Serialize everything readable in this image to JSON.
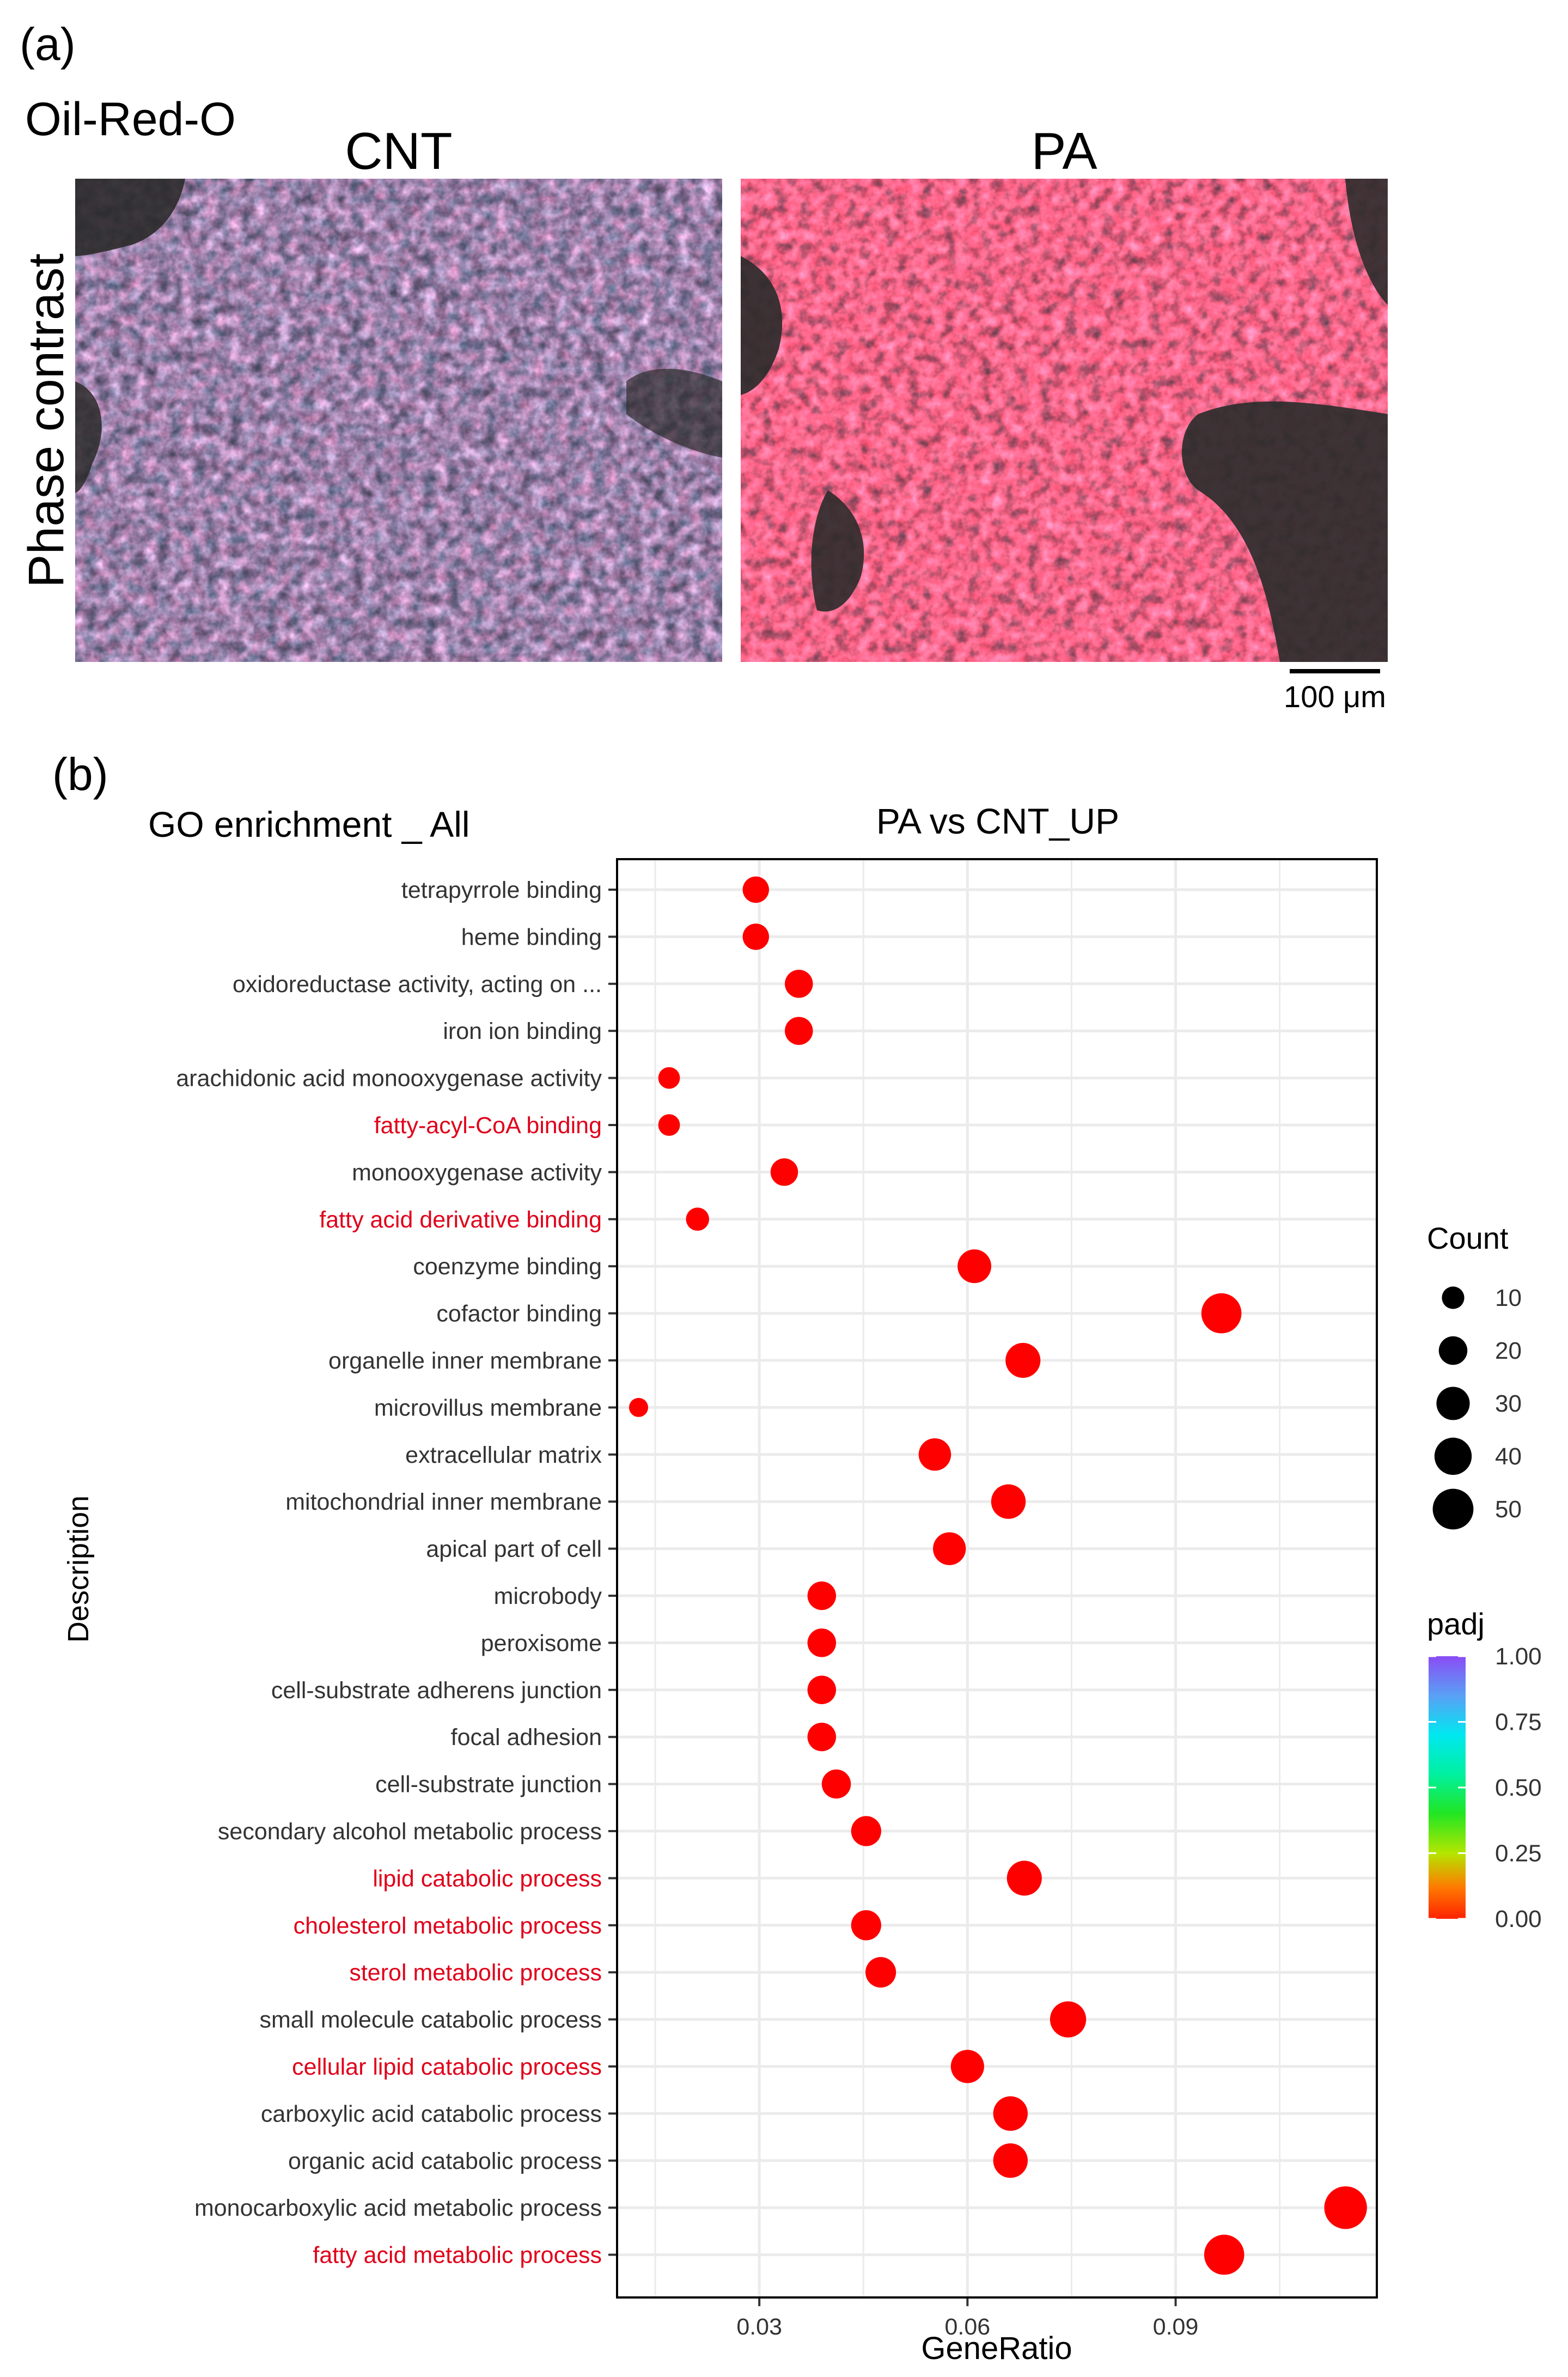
{
  "panel_a": {
    "label": "(a)",
    "stain": "Oil-Red-O",
    "row_label": "Phase contrast",
    "images": [
      {
        "title": "CNT"
      },
      {
        "title": "PA"
      }
    ],
    "scale_bar": "100 μm"
  },
  "panel_b": {
    "label": "(b)",
    "left_title": "GO enrichment _ All",
    "plot_title": "PA vs CNT_UP"
  },
  "colors": {
    "point": "#ff0000",
    "highlight_label": "#e0001a",
    "normal_label": "#333333",
    "panel_bg": "#ebebeb"
  },
  "chart_data": {
    "type": "scatter",
    "title": "PA vs CNT_UP",
    "xlabel": "GeneRatio",
    "ylabel": "Description",
    "x_ticks": [
      "0.03",
      "0.06",
      "0.09"
    ],
    "xlim": [
      0.0095,
      0.119
    ],
    "grid": true,
    "legend_placement": "right",
    "size_legend": {
      "title": "Count",
      "values": [
        10,
        20,
        30,
        40,
        50
      ]
    },
    "color_legend": {
      "title": "padj",
      "ticks": [
        "1.00",
        "0.75",
        "0.50",
        "0.25",
        "0.00"
      ],
      "range": [
        0,
        1
      ]
    },
    "points": [
      {
        "label": "tetrapyrrole binding",
        "x": 0.0295,
        "count": 16,
        "padj": 0.0,
        "highlight": false
      },
      {
        "label": "heme binding",
        "x": 0.0295,
        "count": 16,
        "padj": 0.0,
        "highlight": false
      },
      {
        "label": "oxidoreductase activity, acting on ...",
        "x": 0.0357,
        "count": 19,
        "padj": 0.0,
        "highlight": false
      },
      {
        "label": "iron ion binding",
        "x": 0.0357,
        "count": 19,
        "padj": 0.0,
        "highlight": false
      },
      {
        "label": "arachidonic acid monooxygenase activity",
        "x": 0.017,
        "count": 9,
        "padj": 0.0,
        "highlight": false
      },
      {
        "label": "fatty-acyl-CoA binding",
        "x": 0.017,
        "count": 9,
        "padj": 0.0,
        "highlight": true
      },
      {
        "label": "monooxygenase activity",
        "x": 0.0336,
        "count": 18,
        "padj": 0.0,
        "highlight": false
      },
      {
        "label": "fatty acid derivative binding",
        "x": 0.0211,
        "count": 11,
        "padj": 0.0,
        "highlight": true
      },
      {
        "label": "coenzyme binding",
        "x": 0.061,
        "count": 31,
        "padj": 0.0,
        "highlight": false
      },
      {
        "label": "cofactor binding",
        "x": 0.0966,
        "count": 48,
        "padj": 0.0,
        "highlight": false
      },
      {
        "label": "organelle inner membrane",
        "x": 0.068,
        "count": 34,
        "padj": 0.0,
        "highlight": false
      },
      {
        "label": "microvillus membrane",
        "x": 0.0126,
        "count": 6,
        "padj": 0.0,
        "highlight": false
      },
      {
        "label": "extracellular matrix",
        "x": 0.0553,
        "count": 28,
        "padj": 0.0,
        "highlight": false
      },
      {
        "label": "mitochondrial inner membrane",
        "x": 0.0659,
        "count": 33,
        "padj": 0.0,
        "highlight": false
      },
      {
        "label": "apical part of cell",
        "x": 0.0574,
        "count": 29,
        "padj": 0.0,
        "highlight": false
      },
      {
        "label": "microbody",
        "x": 0.039,
        "count": 20,
        "padj": 0.0,
        "highlight": false
      },
      {
        "label": "peroxisome",
        "x": 0.039,
        "count": 20,
        "padj": 0.0,
        "highlight": false
      },
      {
        "label": "cell-substrate adherens junction",
        "x": 0.039,
        "count": 20,
        "padj": 0.0,
        "highlight": false
      },
      {
        "label": "focal adhesion",
        "x": 0.039,
        "count": 20,
        "padj": 0.0,
        "highlight": false
      },
      {
        "label": "cell-substrate junction",
        "x": 0.0411,
        "count": 21,
        "padj": 0.0,
        "highlight": false
      },
      {
        "label": "secondary alcohol metabolic process",
        "x": 0.0454,
        "count": 23,
        "padj": 0.0,
        "highlight": false
      },
      {
        "label": "lipid catabolic process",
        "x": 0.0682,
        "count": 34,
        "padj": 0.0,
        "highlight": true
      },
      {
        "label": "cholesterol metabolic process",
        "x": 0.0454,
        "count": 23,
        "padj": 0.0,
        "highlight": true
      },
      {
        "label": "sterol metabolic process",
        "x": 0.0475,
        "count": 24,
        "padj": 0.0,
        "highlight": true
      },
      {
        "label": "small molecule catabolic process",
        "x": 0.0745,
        "count": 37,
        "padj": 0.0,
        "highlight": false
      },
      {
        "label": "cellular lipid catabolic process",
        "x": 0.06,
        "count": 30,
        "padj": 0.0,
        "highlight": true
      },
      {
        "label": "carboxylic acid catabolic process",
        "x": 0.0662,
        "count": 33,
        "padj": 0.0,
        "highlight": false
      },
      {
        "label": "organic acid catabolic process",
        "x": 0.0662,
        "count": 33,
        "padj": 0.0,
        "highlight": false
      },
      {
        "label": "monocarboxylic acid metabolic process",
        "x": 0.1145,
        "count": 56,
        "padj": 0.0,
        "highlight": false
      },
      {
        "label": "fatty acid metabolic process",
        "x": 0.097,
        "count": 48,
        "padj": 0.0,
        "highlight": true
      }
    ]
  }
}
